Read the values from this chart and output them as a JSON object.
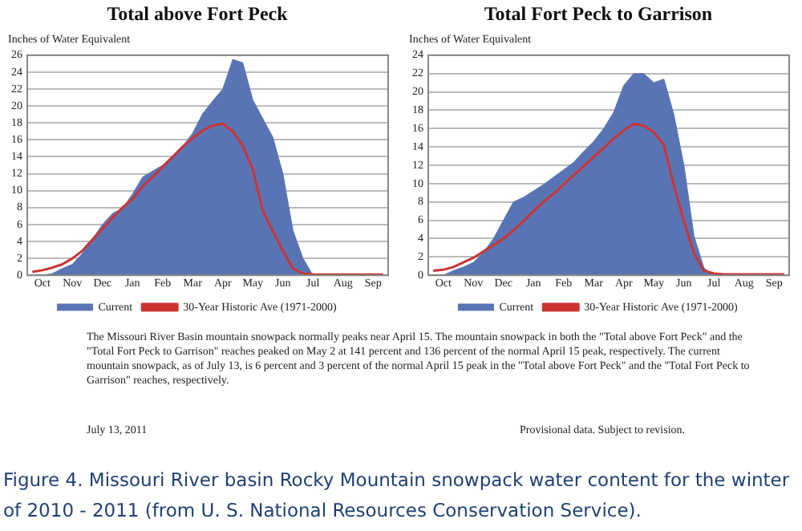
{
  "chart_data": [
    {
      "type": "area",
      "title": "Total above Fort Peck",
      "ylabel": "Inches of Water Equivalent",
      "categories": [
        null,
        "Oct",
        null,
        null,
        "Nov",
        null,
        null,
        "Dec",
        null,
        null,
        "Jan",
        null,
        null,
        "Feb",
        null,
        null,
        "Mar",
        null,
        null,
        "Apr",
        null,
        null,
        "May",
        null,
        null,
        "Jun",
        null,
        null,
        "Jul",
        null,
        null,
        "Aug",
        null,
        null,
        "Sep",
        null
      ],
      "ylim": [
        0,
        26
      ],
      "yticks": [
        0,
        2,
        4,
        6,
        8,
        10,
        12,
        14,
        16,
        18,
        20,
        22,
        24,
        26
      ],
      "grid": "y",
      "legend": "bottom",
      "series": [
        {
          "name": "Current",
          "type": "area",
          "color": "#5874b5",
          "values": [
            0,
            0,
            0.2,
            0.8,
            1.3,
            2.6,
            4.3,
            6,
            7.3,
            7.9,
            9.6,
            11.6,
            12.3,
            13,
            14.1,
            15.2,
            16.8,
            19.1,
            20.6,
            22,
            25.5,
            25.1,
            20.7,
            18.5,
            16.3,
            12,
            5.3,
            2,
            0,
            0,
            0,
            0,
            0,
            0,
            0,
            0
          ]
        },
        {
          "name": "30-Year Historic Ave (1971-2000)",
          "type": "line",
          "color": "#cc3333",
          "values": [
            0.4,
            0.6,
            0.9,
            1.3,
            2,
            2.9,
            4.2,
            5.5,
            6.8,
            8,
            9,
            10.5,
            11.6,
            12.8,
            14,
            15.2,
            16.2,
            17.1,
            17.7,
            17.9,
            17,
            15.3,
            12.5,
            7.6,
            5.2,
            2.9,
            0.8,
            0.2,
            0.1,
            0.1,
            0.1,
            0.1,
            0.1,
            0.1,
            0.1,
            0.1
          ]
        }
      ]
    },
    {
      "type": "area",
      "title": "Total Fort Peck to Garrison",
      "ylabel": "Inches of Water Equivalent",
      "categories": [
        null,
        "Oct",
        null,
        null,
        "Nov",
        null,
        null,
        "Dec",
        null,
        null,
        "Jan",
        null,
        null,
        "Feb",
        null,
        null,
        "Mar",
        null,
        null,
        "Apr",
        null,
        null,
        "May",
        null,
        null,
        "Jun",
        null,
        null,
        "Jul",
        null,
        null,
        "Aug",
        null,
        null,
        "Sep",
        null
      ],
      "ylim": [
        0,
        24
      ],
      "yticks": [
        0,
        2,
        4,
        6,
        8,
        10,
        12,
        14,
        16,
        18,
        20,
        22,
        24
      ],
      "grid": "y",
      "legend": "bottom",
      "series": [
        {
          "name": "Current",
          "type": "area",
          "color": "#5874b5",
          "values": [
            0,
            0,
            0.5,
            0.9,
            1.4,
            2.5,
            4,
            6,
            8,
            8.5,
            9.2,
            9.9,
            10.7,
            11.5,
            12.3,
            13.5,
            14.6,
            16,
            17.8,
            20.7,
            22,
            22,
            21,
            21.4,
            17.5,
            12,
            4.3,
            0.8,
            0,
            0,
            0,
            0,
            0,
            0,
            0,
            0
          ]
        },
        {
          "name": "30-Year Historic Ave (1971-2000)",
          "type": "line",
          "color": "#cc3333",
          "values": [
            0.5,
            0.6,
            0.9,
            1.4,
            1.9,
            2.6,
            3.3,
            4,
            4.9,
            5.9,
            7,
            8,
            8.9,
            9.9,
            10.9,
            11.9,
            12.9,
            13.9,
            14.9,
            15.8,
            16.5,
            16.3,
            15.6,
            14.2,
            9.8,
            5.9,
            2.4,
            0.5,
            0.2,
            0.1,
            0.1,
            0.1,
            0.1,
            0.1,
            0.1,
            0.1
          ]
        }
      ]
    },
    {
      "type": "other",
      "annotations": [
        "The Missouri River Basin mountain snowpack normally peaks near April 15.  The mountain snowpack in both the \"Total above Fort Peck\" and the \"Total Fort Peck to Garrison\" reaches peaked on May 2 at 141 percent and 136 percent of the normal April 15 peak, respectively. The current mountain snowpack, as of July 13, is 6 percent and 3 percent of the normal April 15 peak in the \"Total above Fort Peck\" and the \"Total Fort Peck to Garrison\" reaches, respectively.",
        "July 13, 2011",
        "Provisional data.  Subject to revision.",
        "Figure 4. Missouri River basin Rocky Mountain snowpack water content for the winter of 2010 - 2011 (from U. S. National Resources Conservation Service)."
      ]
    }
  ]
}
